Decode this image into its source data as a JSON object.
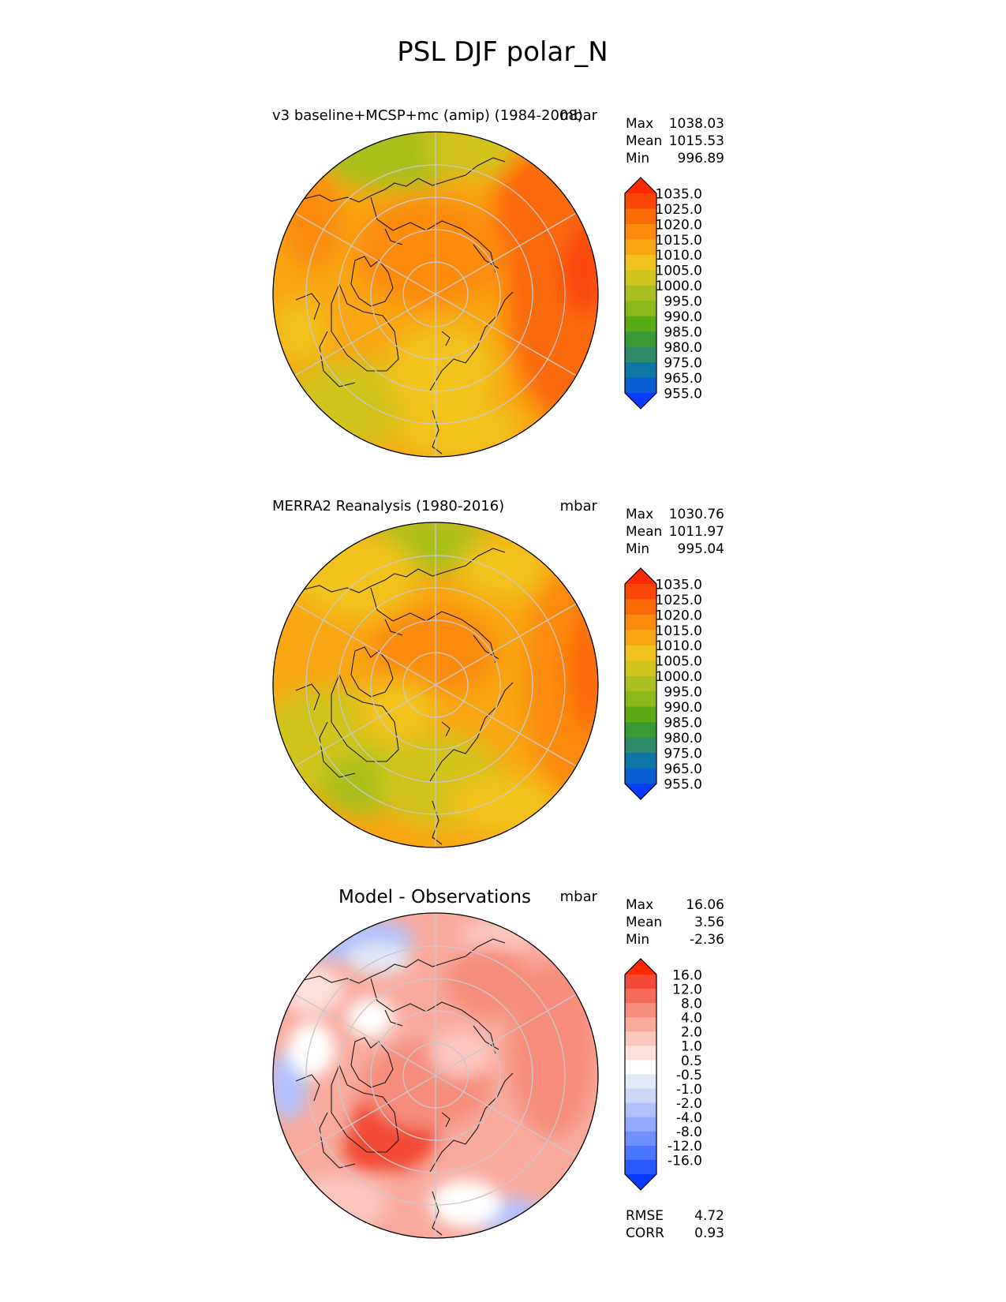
{
  "title": "PSL DJF polar_N",
  "colors": {
    "field_scale": [
      "#0a3cff",
      "#0b5ed0",
      "#0d78a8",
      "#2f8a6a",
      "#3b9a38",
      "#5aaa16",
      "#8cb81a",
      "#a9bf1f",
      "#d2c41f",
      "#f2c31e",
      "#f9a614",
      "#fb8a0d",
      "#fb6b08",
      "#f94708",
      "#ff2a00"
    ],
    "diff_scale": [
      "#0a3cff",
      "#2659ff",
      "#4a76ff",
      "#6f90ff",
      "#92a9ff",
      "#b1c0fa",
      "#cdd6f7",
      "#e4e9f7",
      "#ffffff",
      "#fde0dc",
      "#fbc7bd",
      "#f8aa9b",
      "#f68d7c",
      "#f46c5a",
      "#f24a36",
      "#ff2a00"
    ],
    "grid": "#c8c8c8",
    "coast": "#1a1a1a"
  },
  "panels": [
    {
      "title": "v3 baseline+MCSP+mc (amip) (1984-2008)",
      "units": "mbar",
      "stats": [
        {
          "label": "Max",
          "value": "1038.03"
        },
        {
          "label": "Mean",
          "value": "1015.53"
        },
        {
          "label": "Min",
          "value": "996.89"
        }
      ],
      "colorbar_ticks": [
        "1035.0",
        "1025.0",
        "1020.0",
        "1015.0",
        "1010.0",
        "1005.0",
        "1000.0",
        "995.0",
        "990.0",
        "985.0",
        "980.0",
        "975.0",
        "965.0",
        "955.0"
      ]
    },
    {
      "title": "MERRA2 Reanalysis (1980-2016)",
      "units": "mbar",
      "stats": [
        {
          "label": "Max",
          "value": "1030.76"
        },
        {
          "label": "Mean",
          "value": "1011.97"
        },
        {
          "label": "Min",
          "value": "995.04"
        }
      ],
      "colorbar_ticks": [
        "1035.0",
        "1025.0",
        "1020.0",
        "1015.0",
        "1010.0",
        "1005.0",
        "1000.0",
        "995.0",
        "990.0",
        "985.0",
        "980.0",
        "975.0",
        "965.0",
        "955.0"
      ]
    },
    {
      "title": "Model - Observations",
      "units": "mbar",
      "stats": [
        {
          "label": "Max",
          "value": "16.06"
        },
        {
          "label": "Mean",
          "value": "3.56"
        },
        {
          "label": "Min",
          "value": "-2.36"
        }
      ],
      "colorbar_ticks": [
        "16.0",
        "12.0",
        "8.0",
        "4.0",
        "2.0",
        "1.0",
        "0.5",
        "-0.5",
        "-1.0",
        "-2.0",
        "-4.0",
        "-8.0",
        "-12.0",
        "-16.0"
      ],
      "extra_stats": [
        {
          "label": "RMSE",
          "value": "4.72"
        },
        {
          "label": "CORR",
          "value": "0.93"
        }
      ]
    }
  ]
}
